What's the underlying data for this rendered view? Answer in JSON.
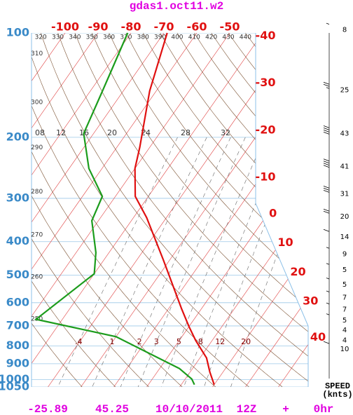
{
  "title": "gdas1.oct11.w2",
  "chart_data": {
    "type": "skewt",
    "pressure_ticks": [
      100,
      200,
      300,
      400,
      500,
      600,
      700,
      800,
      900,
      1000,
      1050
    ],
    "temperature_ticks": [
      -100,
      -90,
      -80,
      -70,
      -60,
      -50,
      -40,
      -30,
      -20,
      -10,
      0,
      10,
      20,
      30,
      40
    ],
    "dry_adiabats": [
      250,
      260,
      270,
      280,
      290,
      300,
      310,
      320,
      330,
      340,
      350,
      360,
      370,
      380,
      390,
      400,
      410,
      420,
      430,
      440
    ],
    "mixing_ratios": [
      {
        "value": 0.4,
        "label": ".4"
      },
      1,
      2,
      3,
      5,
      8,
      12,
      20
    ],
    "upper_labels": [
      "08",
      "12",
      "16",
      "20",
      "24",
      "28",
      "32"
    ],
    "temperature": {
      "color": "#e01010",
      "pressure": [
        100,
        147,
        214,
        246,
        296,
        341,
        451,
        625,
        703,
        771,
        866,
        951,
        1034
      ],
      "values": [
        -69,
        -62,
        -53,
        -50,
        -44,
        -36,
        -22,
        -6,
        0,
        5,
        12,
        16,
        20
      ]
    },
    "dewpoint": {
      "color": "#1c9c1c",
      "pressure": [
        100,
        128,
        151,
        195,
        246,
        296,
        348,
        430,
        495,
        670,
        752,
        929,
        996,
        1034
      ],
      "values": [
        -81,
        -78,
        -76,
        -73,
        -64,
        -54,
        -52,
        -44,
        -40,
        -48,
        -20,
        6,
        12,
        14
      ]
    },
    "wind": {
      "label": "SPEED",
      "unit": "(knts)",
      "pressure": [
        98,
        146,
        195,
        243,
        291,
        339,
        388,
        434,
        483,
        532,
        580,
        628,
        675,
        720,
        770,
        817
      ],
      "speed": [
        8,
        25,
        43,
        41,
        31,
        20,
        14,
        9,
        5,
        5,
        7,
        7,
        5,
        4,
        4,
        10
      ]
    }
  },
  "footer": {
    "lat": -25.89,
    "lon": 45.25,
    "date": "10/10/2011",
    "hour": "12Z",
    "plus": "+",
    "forecast": "0hr"
  }
}
